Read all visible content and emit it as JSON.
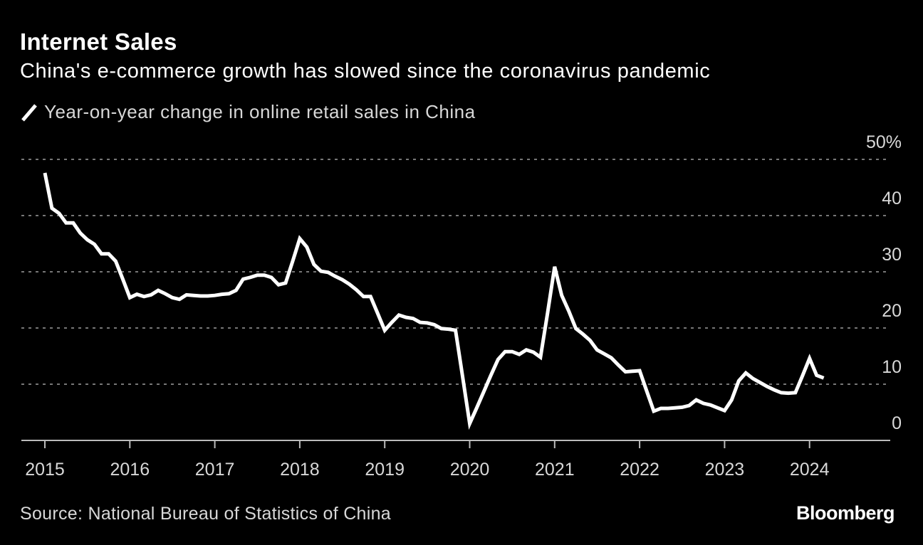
{
  "chart_data": {
    "type": "line",
    "title": "Internet Sales",
    "subtitle": "China's e-commerce growth has slowed since the coronavirus pandemic",
    "legend": [
      {
        "name": "Year-on-year change in online retail sales in China",
        "color": "#ffffff"
      }
    ],
    "legend_placement": "top-left",
    "source": "Source: National Bureau of Statistics of China",
    "logo": "Bloomberg",
    "ylim": [
      0,
      50
    ],
    "yticks": [
      0,
      10,
      20,
      30,
      40,
      50
    ],
    "ytick_labels": [
      "0",
      "10",
      "20",
      "30",
      "40",
      "50%"
    ],
    "xlim": [
      "2015-01",
      "2024-12"
    ],
    "xtick_labels": [
      "2015",
      "2016",
      "2017",
      "2018",
      "2019",
      "2020",
      "2021",
      "2022",
      "2023",
      "2024"
    ],
    "grid": "horizontal dotted",
    "y_axis_side": "right",
    "colors": {
      "background": "#000000",
      "line": "#ffffff",
      "grid": "#777777",
      "axis": "#bbbbbb"
    },
    "series": [
      {
        "name": "Year-on-year change in online retail sales in China",
        "x": [
          "2015-01",
          "2015-02",
          "2015-03",
          "2015-04",
          "2015-05",
          "2015-06",
          "2015-07",
          "2015-08",
          "2015-09",
          "2015-10",
          "2015-11",
          "2015-12",
          "2016-01",
          "2016-02",
          "2016-03",
          "2016-04",
          "2016-05",
          "2016-06",
          "2016-07",
          "2016-08",
          "2016-09",
          "2016-10",
          "2016-11",
          "2016-12",
          "2017-01",
          "2017-02",
          "2017-03",
          "2017-04",
          "2017-05",
          "2017-06",
          "2017-07",
          "2017-08",
          "2017-09",
          "2017-10",
          "2017-11",
          "2017-12",
          "2018-01",
          "2018-02",
          "2018-03",
          "2018-04",
          "2018-05",
          "2018-06",
          "2018-07",
          "2018-08",
          "2018-09",
          "2018-10",
          "2018-11",
          "2018-12",
          "2019-01",
          "2019-02",
          "2019-03",
          "2019-04",
          "2019-05",
          "2019-06",
          "2019-07",
          "2019-08",
          "2019-09",
          "2019-10",
          "2019-11",
          "2019-12",
          "2020-01",
          "2020-02",
          "2020-03",
          "2020-04",
          "2020-05",
          "2020-06",
          "2020-07",
          "2020-08",
          "2020-09",
          "2020-10",
          "2020-11",
          "2020-12",
          "2021-01",
          "2021-02",
          "2021-03",
          "2021-04",
          "2021-05",
          "2021-06",
          "2021-07",
          "2021-08",
          "2021-09",
          "2021-10",
          "2021-11",
          "2021-12",
          "2022-01",
          "2022-02",
          "2022-03",
          "2022-04",
          "2022-05",
          "2022-06",
          "2022-07",
          "2022-08",
          "2022-09",
          "2022-10",
          "2022-11",
          "2022-12",
          "2023-01",
          "2023-02",
          "2023-03",
          "2023-04",
          "2023-05",
          "2023-06",
          "2023-07",
          "2023-08",
          "2023-09",
          "2023-10",
          "2023-11",
          "2023-12",
          "2024-01",
          "2024-02",
          "2024-03"
        ],
        "values": [
          47.6,
          41.3,
          40.4,
          38.7,
          38.7,
          36.9,
          35.7,
          34.9,
          33.2,
          33.2,
          31.9,
          28.7,
          25.4,
          26.0,
          25.6,
          25.9,
          26.7,
          26.1,
          25.4,
          25.1,
          25.9,
          25.8,
          25.7,
          25.7,
          25.8,
          26.0,
          26.1,
          26.7,
          28.7,
          29.0,
          29.4,
          29.4,
          29.0,
          27.7,
          28.0,
          31.9,
          35.9,
          34.4,
          31.3,
          30.1,
          29.9,
          29.2,
          28.6,
          27.8,
          26.8,
          25.6,
          25.6,
          22.6,
          19.6,
          21.0,
          22.3,
          21.9,
          21.7,
          21.0,
          20.9,
          20.6,
          19.9,
          19.8,
          19.6,
          11.3,
          3.0,
          5.8,
          8.7,
          11.6,
          14.4,
          15.8,
          15.8,
          15.3,
          16.1,
          15.7,
          14.8,
          22.7,
          30.9,
          25.8,
          23.0,
          19.9,
          18.9,
          17.8,
          16.1,
          15.4,
          14.7,
          13.4,
          12.2,
          12.3,
          12.4,
          8.8,
          5.2,
          5.7,
          5.7,
          5.8,
          5.9,
          6.2,
          7.2,
          6.6,
          6.3,
          5.8,
          5.3,
          7.2,
          10.6,
          12.0,
          11.0,
          10.3,
          9.6,
          9.0,
          8.5,
          8.4,
          8.5,
          11.5,
          14.6,
          11.6,
          11.1
        ]
      }
    ]
  }
}
